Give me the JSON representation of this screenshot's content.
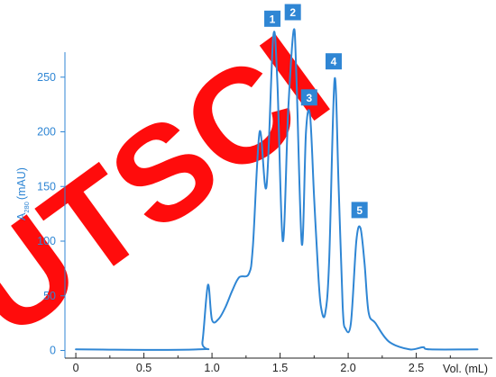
{
  "watermark": {
    "text": "UTSCI",
    "color": "#ff0000"
  },
  "colors": {
    "trace": "#2f86d4",
    "y_axis": "#2f86d4",
    "x_axis": "#222222",
    "peak_badge": "#2f86d4",
    "peak_badge_text": "#ffffff"
  },
  "chart_data": {
    "type": "line",
    "title": "",
    "xlabel": "Vol. (mL)",
    "ylabel_main": "A",
    "ylabel_sub": "280",
    "ylabel_unit": "(mAU)",
    "xlim": [
      -0.08,
      2.95
    ],
    "ylim": [
      -7,
      276
    ],
    "x_ticks": [
      0,
      0.5,
      1.0,
      1.5,
      2.0,
      2.5
    ],
    "x_tick_labels": [
      "0",
      "0.5",
      "1.0",
      "1.5",
      "2.0",
      "2.5"
    ],
    "y_ticks": [
      0,
      50,
      100,
      150,
      200,
      250
    ],
    "y_tick_labels": [
      "0",
      "50",
      "100",
      "150",
      "200",
      "250"
    ],
    "grid": false,
    "series": [
      {
        "x": [
          0,
          0.9,
          0.93,
          0.97,
          1.0,
          1.05,
          1.1,
          1.15,
          1.2,
          1.27,
          1.3,
          1.35,
          1.4,
          1.45,
          1.48,
          1.52,
          1.56,
          1.6,
          1.62,
          1.66,
          1.69,
          1.72,
          1.75,
          1.78,
          1.8,
          1.83,
          1.86,
          1.9,
          1.93,
          1.96,
          1.98,
          2.02,
          2.06,
          2.09,
          2.12,
          2.15,
          2.2,
          2.3,
          2.45,
          2.55,
          2.6,
          2.95
        ],
        "y": [
          1,
          1,
          8,
          60,
          28,
          29,
          40,
          55,
          67,
          70,
          95,
          200,
          150,
          287,
          245,
          100,
          220,
          293,
          250,
          97,
          200,
          215,
          140,
          70,
          40,
          33,
          80,
          248,
          150,
          40,
          20,
          25,
          100,
          112,
          80,
          35,
          25,
          8,
          1,
          3,
          1,
          1
        ]
      }
    ],
    "annotations": [
      {
        "label": "1",
        "x": 1.45,
        "y": 287
      },
      {
        "label": "2",
        "x": 1.6,
        "y": 293
      },
      {
        "label": "3",
        "x": 1.72,
        "y": 215
      },
      {
        "label": "4",
        "x": 1.9,
        "y": 248
      },
      {
        "label": "5",
        "x": 2.09,
        "y": 112
      }
    ]
  }
}
